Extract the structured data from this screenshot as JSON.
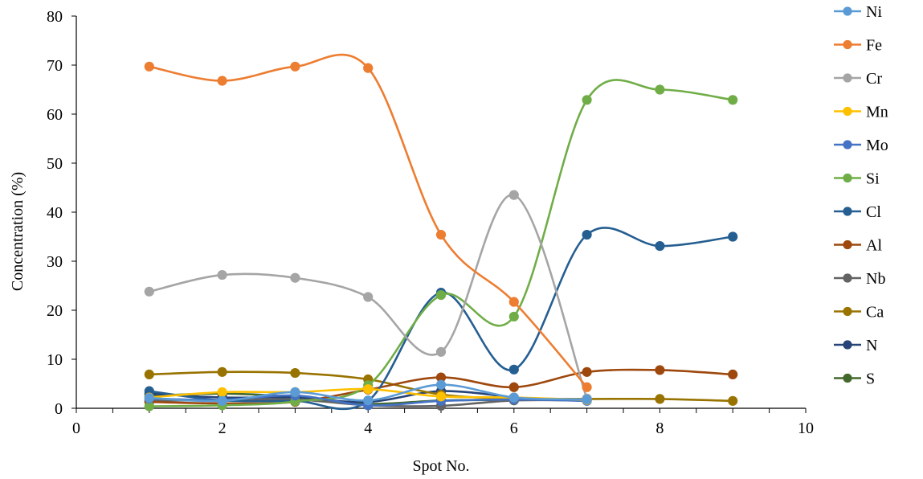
{
  "chart_data": {
    "type": "line",
    "xlabel": "Spot No.",
    "ylabel": "Concentration (%)",
    "xlim": [
      0,
      10
    ],
    "ylim": [
      0,
      80
    ],
    "x_ticks": [
      "0",
      "2",
      "4",
      "6",
      "8",
      "10"
    ],
    "y_ticks": [
      "0",
      "10",
      "20",
      "30",
      "40",
      "50",
      "60",
      "70",
      "80"
    ],
    "smooth": true,
    "grid": false,
    "legend_position": "right",
    "series": [
      {
        "name": "Ni",
        "color": "#5B9BD5",
        "x": [
          1,
          2,
          3,
          4,
          5,
          6,
          7
        ],
        "values": [
          2.1,
          1.5,
          3.3,
          1.6,
          4.8,
          2.2,
          1.8
        ]
      },
      {
        "name": "Fe",
        "color": "#ED7D31",
        "x": [
          1,
          2,
          3,
          4,
          5,
          6,
          7
        ],
        "values": [
          69.7,
          66.8,
          69.7,
          69.4,
          35.4,
          21.7,
          4.3
        ]
      },
      {
        "name": "Cr",
        "color": "#A5A5A5",
        "x": [
          1,
          2,
          3,
          4,
          5,
          6,
          7
        ],
        "values": [
          23.8,
          27.2,
          26.6,
          22.7,
          11.5,
          43.5,
          2.0
        ]
      },
      {
        "name": "Mn",
        "color": "#FFC000",
        "x": [
          1,
          2,
          3,
          4,
          5,
          6,
          7
        ],
        "values": [
          2.2,
          3.3,
          3.3,
          3.9,
          2.4,
          2.2,
          1.7
        ]
      },
      {
        "name": "Mo",
        "color": "#4472C4",
        "x": [
          1,
          2,
          3,
          4,
          5,
          6,
          7
        ],
        "values": [
          2.0,
          1.7,
          2.6,
          0.6,
          1.5,
          1.8,
          1.5
        ]
      },
      {
        "name": "Si",
        "color": "#70AD47",
        "x": [
          1,
          2,
          3,
          4,
          5,
          6,
          7,
          8,
          9
        ],
        "values": [
          0.4,
          0.6,
          1.4,
          4.7,
          23.1,
          18.7,
          62.9,
          65.0,
          62.9
        ]
      },
      {
        "name": "Cl",
        "color": "#255E91",
        "x": [
          1,
          2,
          3,
          4,
          5,
          6,
          7,
          8,
          9
        ],
        "values": [
          3.5,
          1.6,
          1.5,
          1.5,
          23.6,
          7.9,
          35.4,
          33.1,
          35.0
        ]
      },
      {
        "name": "Al",
        "color": "#9E480E",
        "x": [
          1,
          2,
          3,
          4,
          5,
          6,
          7,
          8,
          9
        ],
        "values": [
          1.3,
          1.0,
          1.3,
          3.8,
          6.3,
          4.3,
          7.4,
          7.8,
          6.9
        ]
      },
      {
        "name": "Nb",
        "color": "#636363",
        "x": [
          1,
          2,
          3,
          4,
          5,
          6,
          7
        ],
        "values": [
          1.6,
          1.6,
          1.8,
          0.6,
          0.5,
          1.6,
          1.6
        ]
      },
      {
        "name": "Ca",
        "color": "#997300",
        "x": [
          1,
          2,
          3,
          4,
          5,
          6,
          7,
          8,
          9
        ],
        "values": [
          6.9,
          7.4,
          7.2,
          5.9,
          2.8,
          2.0,
          1.9,
          1.9,
          1.5
        ]
      },
      {
        "name": "N",
        "color": "#264478",
        "x": [
          1,
          2,
          3,
          4,
          5,
          6
        ],
        "values": [
          3.0,
          2.2,
          2.2,
          1.3,
          3.5,
          2.2
        ]
      },
      {
        "name": "S",
        "color": "#43682B",
        "x": [
          1,
          2,
          3,
          4,
          5,
          6
        ],
        "values": [
          2.5,
          3.0,
          2.3,
          0.9,
          1.6,
          1.7
        ]
      }
    ]
  }
}
